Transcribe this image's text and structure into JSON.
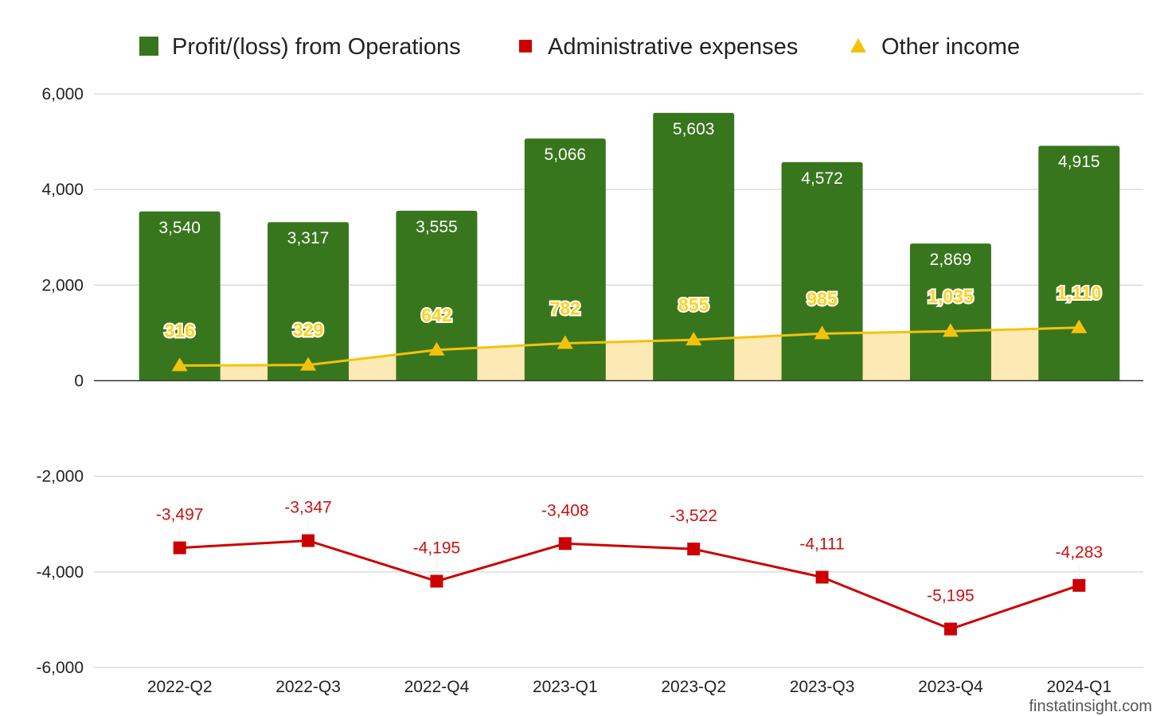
{
  "chart_data": {
    "type": "bar",
    "categories": [
      "2022-Q2",
      "2022-Q3",
      "2022-Q4",
      "2023-Q1",
      "2023-Q2",
      "2023-Q3",
      "2023-Q4",
      "2024-Q1"
    ],
    "series": [
      {
        "name": "Profit/(loss) from Operations",
        "type": "bar",
        "color": "#38761d",
        "values": [
          3540,
          3317,
          3555,
          5066,
          5603,
          4572,
          2869,
          4915
        ],
        "labels": [
          "3,540",
          "3,317",
          "3,555",
          "5,066",
          "5,603",
          "4,572",
          "2,869",
          "4,915"
        ]
      },
      {
        "name": "Administrative expenses",
        "type": "line",
        "marker": "square",
        "color": "#cc0000",
        "values": [
          -3497,
          -3347,
          -4195,
          -3408,
          -3522,
          -4111,
          -5195,
          -4283
        ],
        "labels": [
          "-3,497",
          "-3,347",
          "-4,195",
          "-3,408",
          "-3,522",
          "-4,111",
          "-5,195",
          "-4,283"
        ]
      },
      {
        "name": "Other income",
        "type": "area-line",
        "marker": "triangle",
        "color": "#f4c20d",
        "fill": "#fde9b4",
        "values": [
          316,
          329,
          642,
          782,
          855,
          985,
          1035,
          1110
        ],
        "labels": [
          "316",
          "329",
          "642",
          "782",
          "855",
          "985",
          "1,035",
          "1,110"
        ]
      }
    ],
    "ylim": [
      -6000,
      6000
    ],
    "yticks": [
      6000,
      4000,
      2000,
      0,
      -2000,
      -4000,
      -6000
    ],
    "ytick_labels": [
      "6,000",
      "4,000",
      "2,000",
      "0",
      "-2,000",
      "-4,000",
      "-6,000"
    ],
    "grid": true,
    "legend_position": "top",
    "title": "",
    "xlabel": "",
    "ylabel": ""
  },
  "watermark": "finstatinsight.com"
}
